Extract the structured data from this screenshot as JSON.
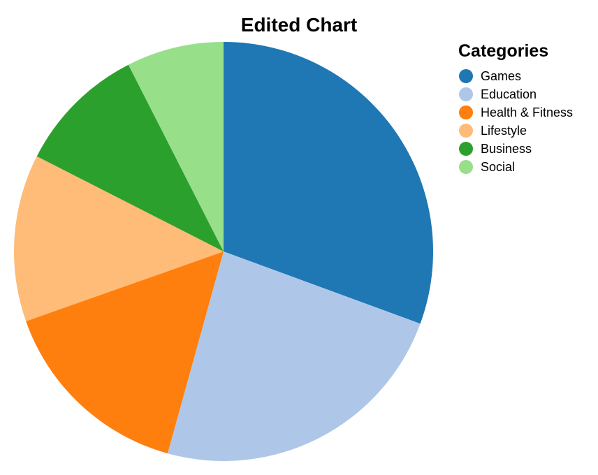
{
  "chart_data": {
    "type": "pie",
    "title": "Edited Chart",
    "legend": {
      "title": "Categories",
      "placement": "right"
    },
    "categories": [
      "Games",
      "Education",
      "Health & Fitness",
      "Lifestyle",
      "Business",
      "Social"
    ],
    "values": [
      30.6,
      23.7,
      15.3,
      12.9,
      10.0,
      7.5
    ],
    "colors": [
      "#1f77b4",
      "#aec7e8",
      "#ff7f0e",
      "#ffbb78",
      "#2ca02c",
      "#98df8a"
    ],
    "start_angle": "top",
    "direction": "clockwise"
  }
}
